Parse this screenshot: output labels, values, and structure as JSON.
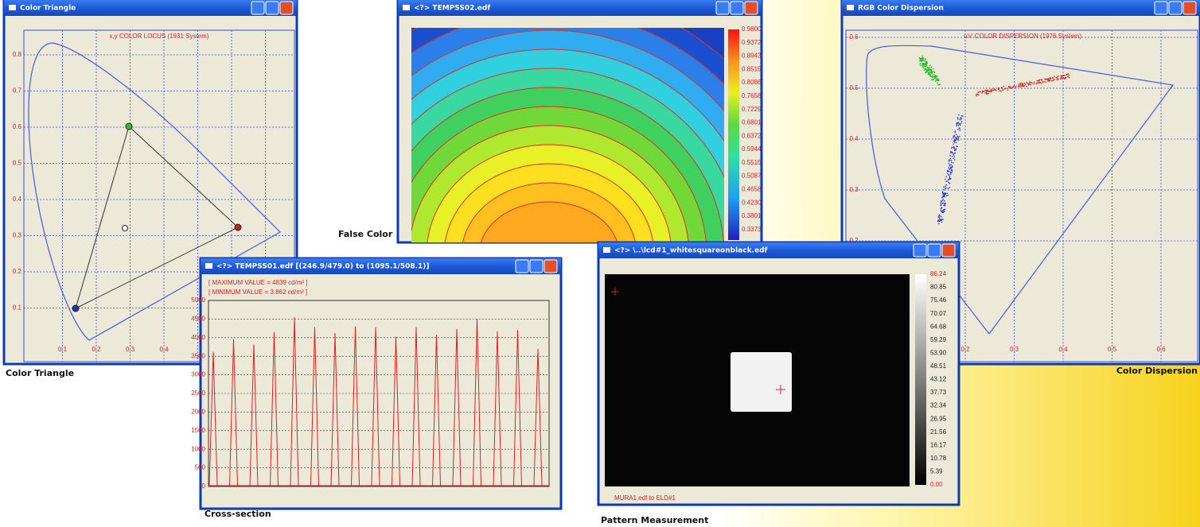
{
  "windows": {
    "false_color": {
      "title": "<?> TEMPSS02.edf",
      "scale_labels": [
        "0.9800",
        "0.9372",
        "0.8943",
        "0.8515",
        "0.8086",
        "0.7658",
        "0.7229",
        "0.6801",
        "0.6372",
        "0.5944",
        "0.5515",
        "0.5087",
        "0.4658",
        "0.4230",
        "0.3801",
        "0.3373"
      ]
    },
    "color_triangle": {
      "title": "Color Triangle",
      "chart_title": "x,y COLOR LOCUS (1931 System)",
      "xticks": [
        "0.1",
        "0.2",
        "0.3",
        "0.4"
      ],
      "yticks": [
        "0.1",
        "0.2",
        "0.3",
        "0.4",
        "0.5",
        "0.6",
        "0.7",
        "0.8"
      ]
    },
    "color_dispersion": {
      "title": "RGB Color Dispersion",
      "chart_title": "u'v' COLOR DISPERSION (1976 System)",
      "xticks": [
        "0.2",
        "0.3",
        "0.4",
        "0.5",
        "0.6"
      ],
      "yticks": [
        "0.2",
        "0.3",
        "0.4",
        "0.5",
        "0.6"
      ]
    },
    "cross_section": {
      "title": "<?> TEMPSS01.edf [(246.9/479.0) to (1095.1/508.1)]",
      "max_label": "[ MAXIMUM VALUE = 4839 cd/m² ]",
      "min_label": "[ MINIMUM VALUE = 3.862 cd/m² ]",
      "ylim": [
        0,
        5000
      ],
      "yticks": [
        0,
        500,
        1000,
        1500,
        2000,
        2500,
        3000,
        3500,
        4000,
        4500,
        5000
      ],
      "peaks": [
        3620,
        3950,
        3820,
        4150,
        4550,
        4280,
        4120,
        4300,
        4280,
        4030,
        4280,
        4080,
        4230,
        4500,
        4170,
        4200,
        3700
      ]
    },
    "pattern": {
      "title": "<?> \\..\\lcd#1_whitesquareonblack.edf",
      "footer": "MURA1.edf to ELD#1",
      "scale_labels": [
        "86.24",
        "80.85",
        "75.46",
        "70.07",
        "64.68",
        "59.29",
        "53.90",
        "48.51",
        "43.12",
        "37.73",
        "32.34",
        "26.95",
        "21.56",
        "16.17",
        "10.78",
        "5.39",
        "0.00"
      ]
    }
  },
  "captions": {
    "color_triangle": "Color Triangle",
    "false_color": "False Color",
    "color_dispersion": "Color Dispersion",
    "cross_section": "Cross-section",
    "pattern": "Pattern Measurement"
  }
}
